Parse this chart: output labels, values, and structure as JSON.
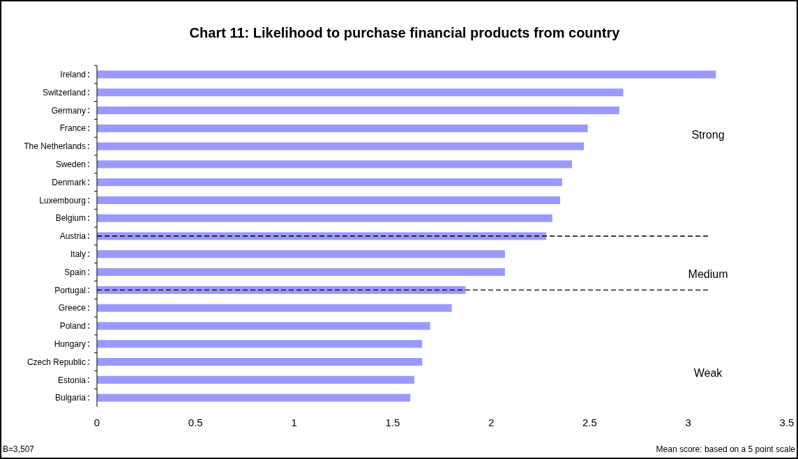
{
  "chart_data": {
    "type": "bar",
    "orientation": "horizontal",
    "title": "Chart 11: Likelihood to purchase financial products from country",
    "categories": [
      "Ireland",
      "Switzerland",
      "Germany",
      "France",
      "The Netherlands",
      "Sweden",
      "Denmark",
      "Luxembourg",
      "Belgium",
      "Austria",
      "Italy",
      "Spain",
      "Portugal",
      "Greece",
      "Poland",
      "Hungary",
      "Czech Republic",
      "Estonia",
      "Bulgaria"
    ],
    "values": [
      3.14,
      2.67,
      2.65,
      2.49,
      2.47,
      2.41,
      2.36,
      2.35,
      2.31,
      2.28,
      2.07,
      2.07,
      1.87,
      1.8,
      1.69,
      1.65,
      1.65,
      1.61,
      1.59
    ],
    "color": "#9999ff",
    "xlim": [
      0,
      3.5
    ],
    "xticks": [
      0,
      0.5,
      1,
      1.5,
      2,
      2.5,
      3,
      3.5
    ],
    "annotations": [
      "Strong",
      "Medium",
      "Weak",
      "B=3,507",
      "Mean score: based on a 5 point scale"
    ]
  }
}
